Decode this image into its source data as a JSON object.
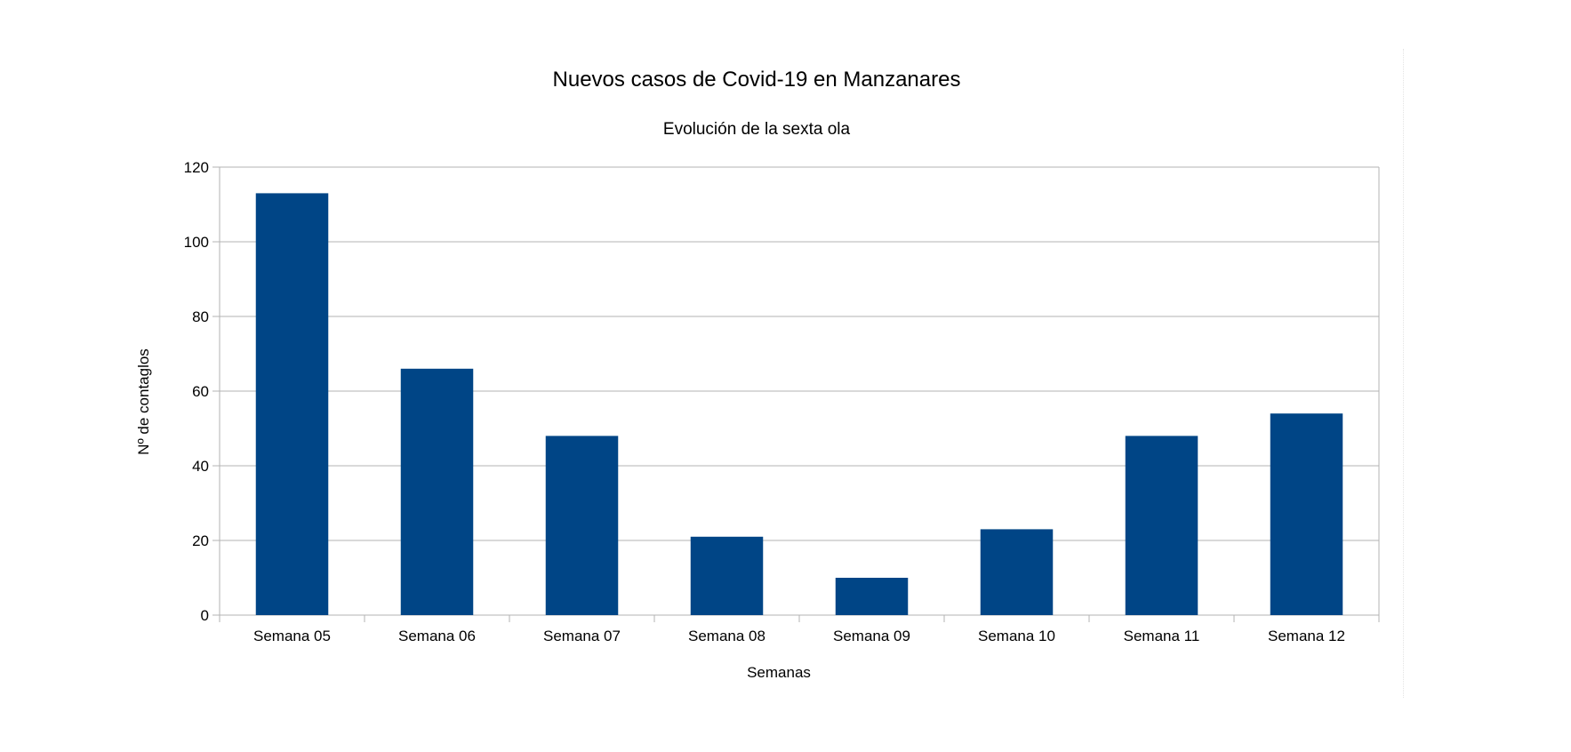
{
  "chart_data": {
    "type": "bar",
    "title": "Nuevos casos de Covid-19 en Manzanares",
    "subtitle": "Evolución de la sexta ola",
    "xlabel": "Semanas",
    "ylabel": "Nº de contaglos",
    "categories": [
      "Semana 05",
      "Semana 06",
      "Semana 07",
      "Semana 08",
      "Semana 09",
      "Semana 10",
      "Semana 11",
      "Semana 12"
    ],
    "values": [
      113,
      66,
      48,
      21,
      10,
      23,
      48,
      54
    ],
    "ylim": [
      0,
      120
    ],
    "yticks": [
      0,
      20,
      40,
      60,
      80,
      100,
      120
    ],
    "grid": true,
    "legend": "none",
    "bar_color": "#004586",
    "grid_color": "#b3b3b3"
  }
}
